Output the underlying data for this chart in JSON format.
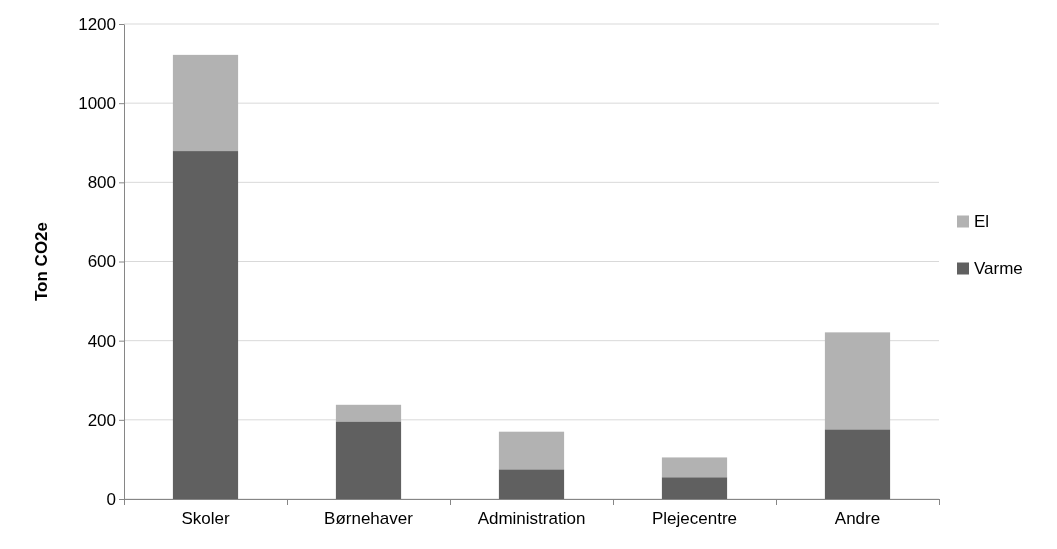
{
  "chart_data": {
    "type": "bar",
    "stacked": true,
    "ylabel": "Ton CO2e",
    "categories": [
      "Skoler",
      "Børnehaver",
      "Administration",
      "Plejecentre",
      "Andre"
    ],
    "series": [
      {
        "name": "Varme",
        "color": "#606060",
        "values": [
          879,
          196,
          75,
          55,
          176
        ]
      },
      {
        "name": "El",
        "color": "#b2b2b2",
        "values": [
          243,
          42,
          95,
          50,
          245
        ]
      }
    ],
    "ylim": [
      0,
      1200
    ],
    "yticks": [
      0,
      200,
      400,
      600,
      800,
      1000,
      1200
    ],
    "grid": "y",
    "legend": "right"
  }
}
